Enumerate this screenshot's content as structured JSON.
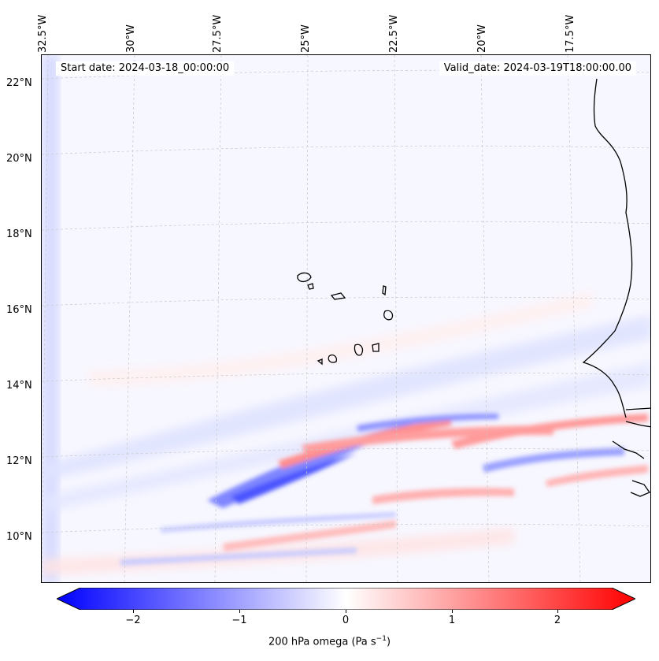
{
  "map": {
    "start_date": "Start date: 2024-03-18_00:00:00",
    "valid_date": "Valid_date: 2024-03-19T18:00:00.00",
    "lon_labels": [
      "32.5°W",
      "30°W",
      "27.5°W",
      "25°W",
      "22.5°W",
      "20°W",
      "17.5°W"
    ],
    "lat_labels": [
      "22°N",
      "20°N",
      "18°N",
      "16°N",
      "14°N",
      "12°N",
      "10°N"
    ],
    "field": "200 hPa omega",
    "colormap": "bwr",
    "colors": {
      "negative": "#0000ff",
      "zero": "#ffffff",
      "positive": "#ff0000",
      "coastline": "#000000",
      "gridline": "#b0b0b0"
    }
  },
  "colorbar": {
    "label": "200 hPa omega (Pa s",
    "label_exp": "−1",
    "label_end": ")",
    "ticks": [
      "−2",
      "−1",
      "0",
      "1",
      "2"
    ],
    "range": [
      -2.6,
      2.6
    ],
    "extend": "both"
  }
}
